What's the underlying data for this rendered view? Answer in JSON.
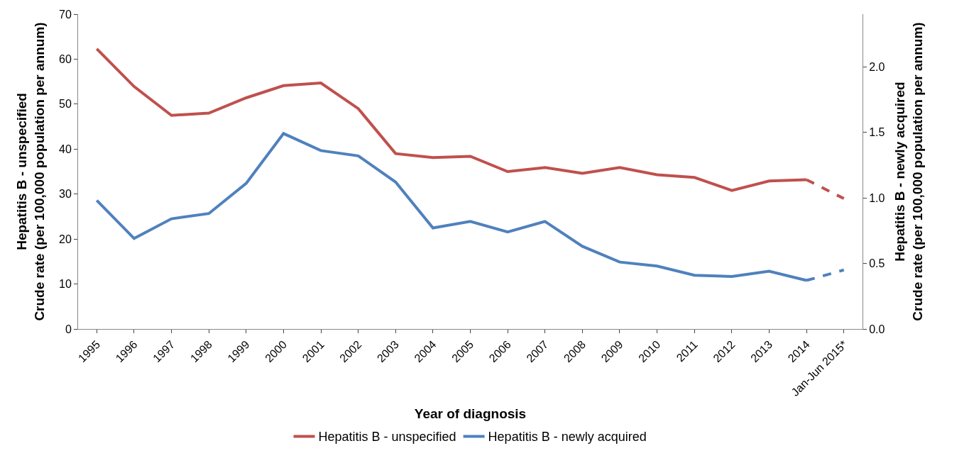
{
  "chart_data": {
    "type": "line",
    "xlabel": "Year of diagnosis",
    "ylabel": "Hepatitis B - unspecified\nCrude rate (per 100,000 population per annum)",
    "y2label": "Hepatitis B - newly acquired\nCrude rate (per 100,000 population per annum)",
    "categories": [
      "1995",
      "1996",
      "1997",
      "1998",
      "1999",
      "2000",
      "2001",
      "2002",
      "2003",
      "2004",
      "2005",
      "2006",
      "2007",
      "2008",
      "2009",
      "2010",
      "2011",
      "2012",
      "2013",
      "2014",
      "Jan-Jun 2015*"
    ],
    "series": [
      {
        "name": "Hepatitis B - unspecified",
        "color": "#c0504d",
        "line_style": "solid",
        "values": [
          62.3,
          53.9,
          47.5,
          48.0,
          51.4,
          54.1,
          54.7,
          49.0,
          39.0,
          38.1,
          38.4,
          35.0,
          35.9,
          34.6,
          35.9,
          34.3,
          33.7,
          30.8,
          32.9,
          33.2,
          null
        ]
      },
      {
        "color": "#c0504d",
        "line_style": "dashed",
        "values": [
          null,
          null,
          null,
          null,
          null,
          null,
          null,
          null,
          null,
          null,
          null,
          null,
          null,
          null,
          null,
          null,
          null,
          null,
          null,
          33.2,
          29.0
        ]
      },
      {
        "name": "Hepatitis B - newly acquired",
        "color": "#4f81bd",
        "axis": "y2",
        "line_style": "solid",
        "values": [
          0.98,
          0.69,
          0.84,
          0.88,
          1.11,
          1.49,
          1.36,
          1.32,
          1.12,
          0.77,
          0.82,
          0.74,
          0.82,
          0.63,
          0.51,
          0.48,
          0.41,
          0.4,
          0.44,
          0.37,
          null
        ]
      },
      {
        "color": "#4f81bd",
        "axis": "y2",
        "line_style": "dashed",
        "values": [
          null,
          null,
          null,
          null,
          null,
          null,
          null,
          null,
          null,
          null,
          null,
          null,
          null,
          null,
          null,
          null,
          null,
          null,
          null,
          0.37,
          0.45
        ]
      }
    ],
    "ylim": [
      0,
      70
    ],
    "yticks": [
      0,
      10,
      20,
      30,
      40,
      50,
      60,
      70
    ],
    "y2lim": [
      0,
      2.4
    ],
    "y2ticks": [
      {
        "value": 0,
        "label": "0.0"
      },
      {
        "value": 0.5,
        "label": "0.5"
      },
      {
        "value": 1,
        "label": "1.0"
      },
      {
        "value": 1.5,
        "label": "1.5"
      },
      {
        "value": 2,
        "label": "2.0"
      }
    ],
    "legend": "bottom",
    "marker": "none"
  }
}
